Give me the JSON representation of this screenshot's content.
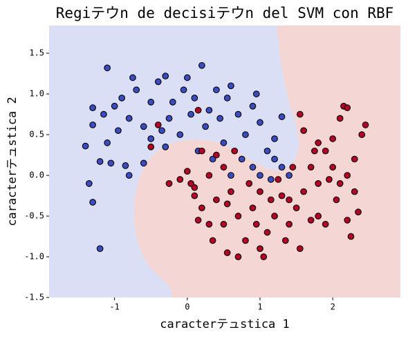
{
  "chart_data": {
    "type": "scatter",
    "title": "Regiテウn de decisiテウn del SVM con RBF",
    "x_label": "caracterテュstica 1",
    "y_label": "caracterテュstica 2",
    "xlim": [
      -1.9,
      2.93
    ],
    "ylim": [
      -1.5,
      1.84
    ],
    "xticks": [
      -1,
      0,
      1,
      2
    ],
    "yticks": [
      -1.5,
      {
        "value": -1,
        "label": "-1.0"
      },
      -0.5,
      {
        "value": 0,
        "label": "0.0"
      },
      0.5,
      {
        "value": 1,
        "label": "1.0"
      },
      1.5
    ],
    "series": [
      {
        "color": "#3b4cc0",
        "x": [
          -1.1,
          -1.3,
          -1.4,
          -1.3,
          -1.35,
          -1.3,
          -1.2,
          -1.2,
          -1.1,
          -1.05,
          -0.8,
          -0.85,
          -1.0,
          -0.9,
          -0.75,
          -0.7,
          -0.6,
          -0.5,
          -0.4,
          -0.3,
          -0.25,
          -0.2,
          -0.1,
          0.0,
          0.1,
          0.2,
          0.25,
          0.3,
          0.4,
          0.5,
          0.55,
          0.6,
          0.7,
          0.8,
          0.9,
          1.0,
          1.1,
          1.2,
          1.3,
          1.4,
          1.3,
          1.2,
          0.9,
          -0.6,
          -0.5,
          -0.95,
          -1.15,
          0.15,
          0.35,
          -0.3,
          0.05,
          -0.05,
          0.6,
          0.75,
          1.0,
          1.15,
          -0.8,
          -0.35,
          0.45,
          0.95
        ],
        "values": [
          1.32,
          0.83,
          0.36,
          0.62,
          -0.1,
          -0.33,
          -0.9,
          0.17,
          0.4,
          0.15,
          0.0,
          0.12,
          0.85,
          0.95,
          1.2,
          1.05,
          0.6,
          0.9,
          1.15,
          1.22,
          0.7,
          0.9,
          0.5,
          1.2,
          0.95,
          1.35,
          0.6,
          0.8,
          1.05,
          0.4,
          0.95,
          1.1,
          0.75,
          0.5,
          0.85,
          0.65,
          0.3,
          0.45,
          0.1,
          0.0,
          0.72,
          0.2,
          0.1,
          0.15,
          0.45,
          0.55,
          0.75,
          0.3,
          0.2,
          0.35,
          0.75,
          1.05,
          0.0,
          0.2,
          0.0,
          -0.05,
          0.7,
          0.55,
          0.7,
          1.0
        ]
      },
      {
        "color": "#b40426",
        "x": [
          0.15,
          -0.4,
          -0.5,
          0.0,
          -0.25,
          0.1,
          0.2,
          0.3,
          0.4,
          0.5,
          0.6,
          0.7,
          0.8,
          0.9,
          0.55,
          1.0,
          1.05,
          1.1,
          1.2,
          1.3,
          1.4,
          1.5,
          1.55,
          1.6,
          1.7,
          1.8,
          1.9,
          2.0,
          2.1,
          2.2,
          2.3,
          2.4,
          2.45,
          2.1,
          2.15,
          2.2,
          2.0,
          1.8,
          1.6,
          1.55,
          1.75,
          2.3,
          2.25,
          1.8,
          1.9,
          1.4,
          0.3,
          0.2,
          0.1,
          -0.1,
          0.5,
          0.65,
          0.85,
          1.0,
          1.15,
          1.35,
          0.7,
          0.95,
          1.7,
          2.05,
          2.2,
          1.25,
          0.4,
          0.15,
          0.55,
          1.45,
          2.35,
          1.95,
          0.35,
          0.05
        ],
        "values": [
          0.8,
          0.62,
          0.35,
          0.05,
          -0.1,
          -0.15,
          0.3,
          0.0,
          -0.3,
          -0.6,
          -0.2,
          -0.5,
          -0.8,
          -0.4,
          -0.95,
          -0.9,
          -1.0,
          -0.7,
          -0.5,
          -0.25,
          -0.6,
          -0.4,
          -0.9,
          -0.2,
          0.1,
          -0.1,
          0.3,
          0.1,
          -0.1,
          0.0,
          0.2,
          0.5,
          0.62,
          0.7,
          0.85,
          0.83,
          0.45,
          0.4,
          0.55,
          0.75,
          0.3,
          -0.2,
          -0.75,
          -0.5,
          -0.6,
          -0.3,
          -0.6,
          -0.4,
          -0.25,
          -0.05,
          0.1,
          0.3,
          -0.1,
          -0.2,
          -0.3,
          -0.8,
          -1.0,
          -0.6,
          -0.55,
          -0.3,
          -0.55,
          -0.05,
          0.25,
          -0.55,
          -0.35,
          0.1,
          -0.45,
          -0.05,
          -0.8,
          -0.1
        ]
      }
    ]
  }
}
